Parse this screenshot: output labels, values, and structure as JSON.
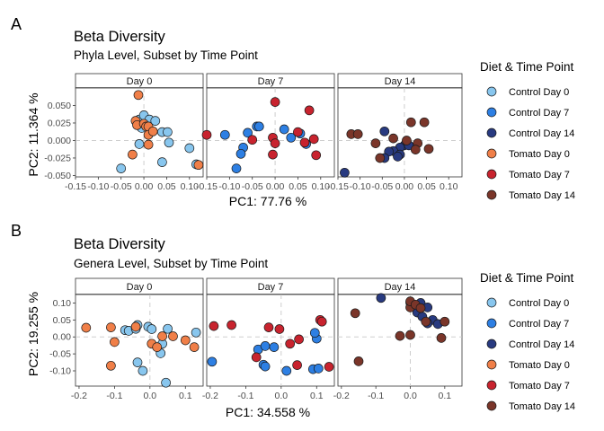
{
  "legend": {
    "title": "Diet & Time Point",
    "groups": [
      {
        "label": "Control Day 0",
        "color": "#88C6EE"
      },
      {
        "label": "Control Day 7",
        "color": "#2D7FE3"
      },
      {
        "label": "Control Day 14",
        "color": "#283A80"
      },
      {
        "label": "Tomato Day 0",
        "color": "#F07F48"
      },
      {
        "label": "Tomato Day 7",
        "color": "#C8232E"
      },
      {
        "label": "Tomato Day 14",
        "color": "#7A3529"
      }
    ]
  },
  "chart_data": [
    {
      "type": "scatter",
      "panel_letter": "A",
      "title": "Beta Diversity",
      "subtitle": "Phyla Level, Subset by Time Point",
      "xlabel": "PC1:  77.76 %",
      "ylabel": "PC2:  11.364 %",
      "xlim": [
        -0.15,
        0.13
      ],
      "ylim": [
        -0.052,
        0.075
      ],
      "xticks": [
        -0.15,
        -0.1,
        -0.05,
        0.0,
        0.05,
        0.1
      ],
      "xtick_labels": [
        "-0.15",
        "-0.10",
        "-0.05",
        "0.00",
        "0.05",
        "0.10"
      ],
      "yticks": [
        -0.05,
        -0.025,
        0.0,
        0.025,
        0.05
      ],
      "ytick_labels": [
        "-0.050",
        "-0.025",
        "0.000",
        "0.025",
        "0.050"
      ],
      "facets": [
        {
          "label": "Day 0",
          "series": [
            {
              "name": "Control Day 0",
              "points": [
                [
                  -0.05,
                  -0.04
                ],
                [
                  -0.01,
                  0.03
                ],
                [
                  0.0,
                  0.036
                ],
                [
                  0.012,
                  0.03
                ],
                [
                  0.025,
                  0.028
                ],
                [
                  0.04,
                  0.012
                ],
                [
                  0.052,
                  0.012
                ],
                [
                  0.055,
                  -0.003
                ],
                [
                  0.1,
                  -0.011
                ],
                [
                  0.115,
                  -0.034
                ],
                [
                  0.04,
                  -0.031
                ],
                [
                  -0.01,
                  -0.005
                ],
                [
                  -0.005,
                  0.018
                ]
              ]
            },
            {
              "name": "Tomato Day 0",
              "points": [
                [
                  -0.012,
                  0.065
                ],
                [
                  -0.018,
                  0.028
                ],
                [
                  -0.015,
                  0.022
                ],
                [
                  0.0,
                  0.024
                ],
                [
                  0.005,
                  0.02
                ],
                [
                  0.01,
                  0.02
                ],
                [
                  0.01,
                  0.008
                ],
                [
                  0.02,
                  0.013
                ],
                [
                  0.01,
                  -0.006
                ],
                [
                  -0.025,
                  -0.02
                ],
                [
                  0.12,
                  -0.035
                ]
              ]
            }
          ]
        },
        {
          "label": "Day 7",
          "series": [
            {
              "name": "Control Day 7",
              "points": [
                [
                  -0.11,
                  0.008
                ],
                [
                  -0.06,
                  0.011
                ],
                [
                  -0.04,
                  0.02
                ],
                [
                  -0.035,
                  0.02
                ],
                [
                  0.02,
                  0.016
                ],
                [
                  0.035,
                  0.004
                ],
                [
                  0.055,
                  0.01
                ],
                [
                  0.068,
                  -0.005
                ],
                [
                  -0.07,
                  -0.01
                ],
                [
                  -0.075,
                  -0.019
                ],
                [
                  -0.085,
                  -0.04
                ]
              ]
            },
            {
              "name": "Tomato Day 7",
              "points": [
                [
                  -0.15,
                  0.008
                ],
                [
                  0.0,
                  0.055
                ],
                [
                  0.075,
                  0.043
                ],
                [
                  0.05,
                  0.012
                ],
                [
                  0.085,
                  0.002
                ],
                [
                  -0.05,
                  0.001
                ],
                [
                  -0.005,
                  0.004
                ],
                [
                  0.0,
                  -0.004
                ],
                [
                  0.065,
                  -0.003
                ],
                [
                  -0.005,
                  -0.02
                ],
                [
                  0.09,
                  -0.021
                ]
              ]
            }
          ]
        },
        {
          "label": "Day 14",
          "series": [
            {
              "name": "Control Day 14",
              "points": [
                [
                  -0.135,
                  -0.046
                ],
                [
                  -0.045,
                  0.013
                ],
                [
                  0.0,
                  -0.007
                ],
                [
                  -0.01,
                  -0.01
                ],
                [
                  -0.025,
                  -0.015
                ],
                [
                  -0.035,
                  -0.016
                ],
                [
                  -0.045,
                  -0.025
                ],
                [
                  0.01,
                  -0.007
                ],
                [
                  -0.01,
                  -0.02
                ],
                [
                  -0.015,
                  -0.023
                ]
              ]
            },
            {
              "name": "Tomato Day 14",
              "points": [
                [
                  -0.12,
                  0.009
                ],
                [
                  -0.105,
                  0.009
                ],
                [
                  0.015,
                  0.026
                ],
                [
                  0.045,
                  0.026
                ],
                [
                  -0.025,
                  0.003
                ],
                [
                  0.005,
                  0.0
                ],
                [
                  0.03,
                  -0.004
                ],
                [
                  -0.065,
                  -0.004
                ],
                [
                  -0.055,
                  -0.025
                ],
                [
                  0.025,
                  -0.013
                ],
                [
                  0.055,
                  -0.012
                ]
              ]
            }
          ]
        }
      ]
    },
    {
      "type": "scatter",
      "panel_letter": "B",
      "title": "Beta Diversity",
      "subtitle": "Genera Level, Subset by Time Point",
      "xlabel": "PC1:  34.558 %",
      "ylabel": "PC2:  19.255 %",
      "xlim": [
        -0.21,
        0.15
      ],
      "ylim": [
        -0.145,
        0.125
      ],
      "xticks": [
        -0.2,
        -0.1,
        0.0,
        0.1
      ],
      "xtick_labels": [
        "-0.2",
        "-0.1",
        "0.0",
        "0.1"
      ],
      "yticks": [
        -0.1,
        -0.05,
        0.0,
        0.05,
        0.1
      ],
      "ytick_labels": [
        "-0.10",
        "-0.05",
        "0.00",
        "0.05",
        "0.10"
      ],
      "facets": [
        {
          "label": "Day 0",
          "series": [
            {
              "name": "Control Day 0",
              "points": [
                [
                  -0.07,
                  0.02
                ],
                [
                  -0.06,
                  0.018
                ],
                [
                  -0.04,
                  0.024
                ],
                [
                  -0.035,
                  0.035
                ],
                [
                  -0.005,
                  0.03
                ],
                [
                  0.005,
                  0.023
                ],
                [
                  0.05,
                  0.024
                ],
                [
                  0.13,
                  0.013
                ],
                [
                  0.035,
                  -0.02
                ],
                [
                  0.03,
                  -0.048
                ],
                [
                  -0.035,
                  -0.075
                ],
                [
                  -0.02,
                  -0.1
                ],
                [
                  0.045,
                  -0.135
                ]
              ]
            },
            {
              "name": "Tomato Day 0",
              "points": [
                [
                  -0.18,
                  0.027
                ],
                [
                  -0.11,
                  0.028
                ],
                [
                  -0.04,
                  0.03
                ],
                [
                  0.035,
                  0.002
                ],
                [
                  0.065,
                  0.002
                ],
                [
                  0.1,
                  -0.01
                ],
                [
                  0.125,
                  -0.03
                ],
                [
                  -0.1,
                  -0.015
                ],
                [
                  0.005,
                  -0.02
                ],
                [
                  0.02,
                  -0.03
                ],
                [
                  -0.11,
                  -0.085
                ]
              ]
            }
          ]
        },
        {
          "label": "Day 7",
          "series": [
            {
              "name": "Control Day 7",
              "points": [
                [
                  -0.195,
                  -0.073
                ],
                [
                  -0.065,
                  -0.037
                ],
                [
                  -0.05,
                  -0.082
                ],
                [
                  -0.045,
                  -0.087
                ],
                [
                  -0.045,
                  -0.027
                ],
                [
                  -0.02,
                  -0.03
                ],
                [
                  0.015,
                  -0.1
                ],
                [
                  0.09,
                  -0.095
                ],
                [
                  0.105,
                  -0.093
                ],
                [
                  0.1,
                  -0.005
                ],
                [
                  0.095,
                  0.012
                ]
              ]
            },
            {
              "name": "Tomato Day 7",
              "points": [
                [
                  -0.19,
                  0.032
                ],
                [
                  -0.14,
                  0.035
                ],
                [
                  -0.035,
                  0.028
                ],
                [
                  -0.005,
                  0.023
                ],
                [
                  0.11,
                  0.05
                ],
                [
                  0.115,
                  0.045
                ],
                [
                  0.025,
                  -0.02
                ],
                [
                  0.05,
                  -0.007
                ],
                [
                  -0.07,
                  -0.06
                ],
                [
                  0.045,
                  -0.083
                ],
                [
                  0.135,
                  -0.088
                ]
              ]
            }
          ]
        },
        {
          "label": "Day 14",
          "series": [
            {
              "name": "Control Day 14",
              "points": [
                [
                  -0.085,
                  0.115
                ],
                [
                  0.0,
                  0.101
                ],
                [
                  0.03,
                  0.1
                ],
                [
                  0.05,
                  0.087
                ],
                [
                  0.065,
                  0.05
                ],
                [
                  0.05,
                  0.04
                ],
                [
                  0.08,
                  0.038
                ],
                [
                  0.02,
                  0.072
                ],
                [
                  0.035,
                  0.06
                ]
              ]
            },
            {
              "name": "Tomato Day 14",
              "points": [
                [
                  -0.16,
                  0.07
                ],
                [
                  -0.15,
                  -0.072
                ],
                [
                  -0.03,
                  0.003
                ],
                [
                  0.0,
                  0.087
                ],
                [
                  0.0,
                  0.105
                ],
                [
                  0.015,
                  0.095
                ],
                [
                  0.03,
                  0.085
                ],
                [
                  0.045,
                  0.045
                ],
                [
                  0.1,
                  0.045
                ],
                [
                  0.09,
                  -0.003
                ],
                [
                  0.0,
                  0.006
                ]
              ]
            }
          ]
        }
      ]
    }
  ]
}
